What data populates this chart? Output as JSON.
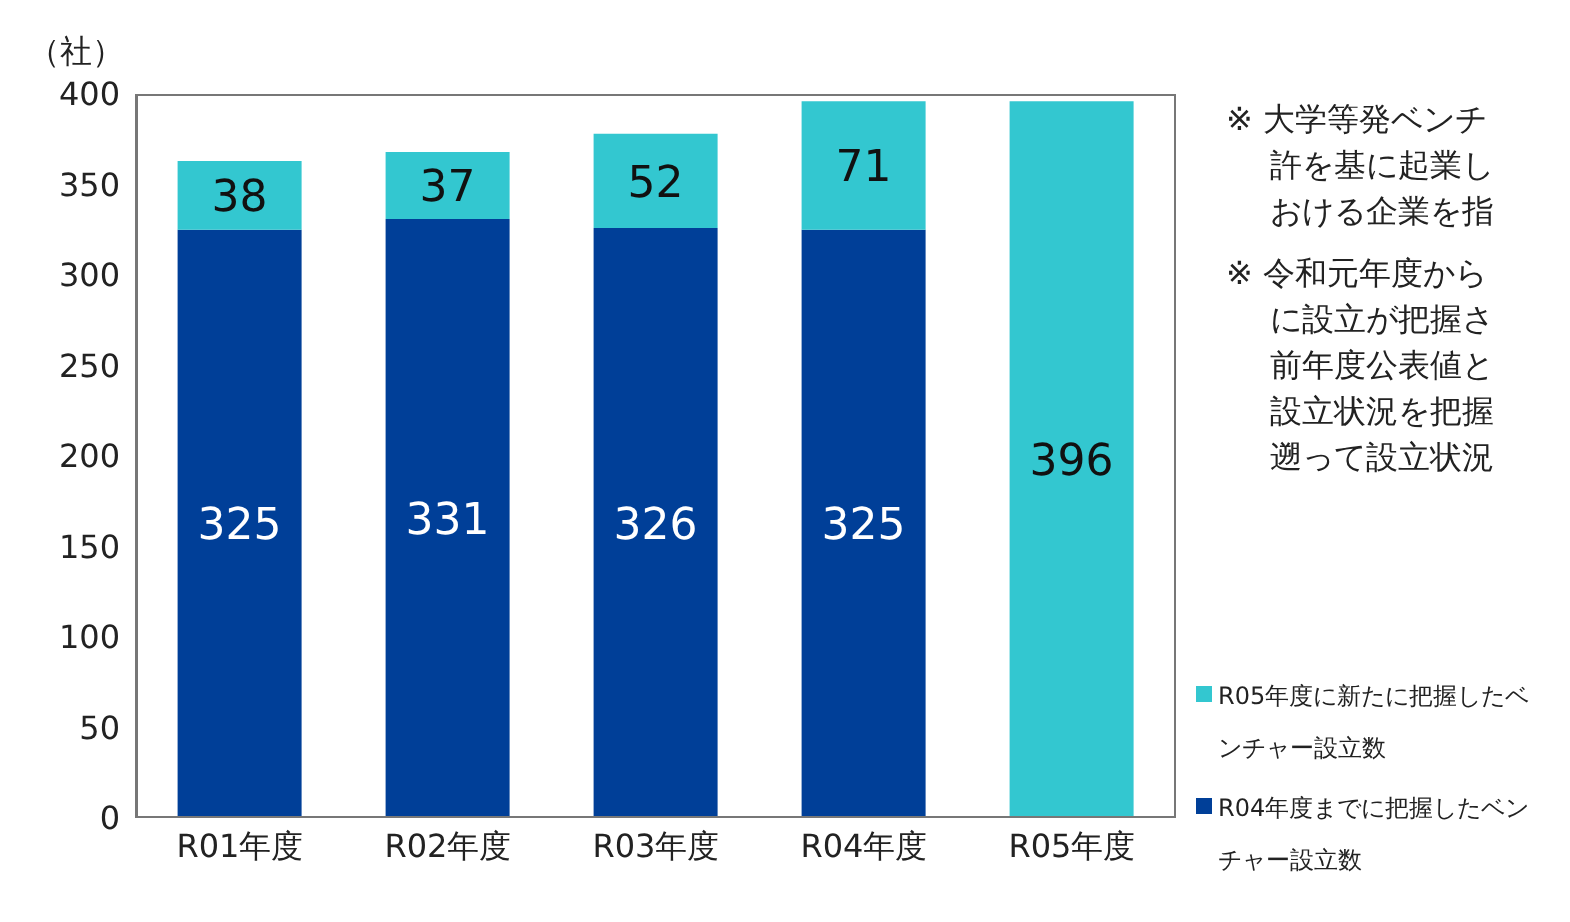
{
  "chart_data": {
    "type": "bar",
    "ylabel": "（社）",
    "categories": [
      "R01年度",
      "R02年度",
      "R03年度",
      "R04年度",
      "R05年度"
    ],
    "series": [
      {
        "name": "R04年度までに把握したベンチャー設立数",
        "color": "#003f98",
        "values": [
          325,
          331,
          326,
          325,
          null
        ]
      },
      {
        "name": "R05年度に新たに把握したベンチャー設立数",
        "color": "#33c7d0",
        "values": [
          38,
          37,
          52,
          71,
          396
        ]
      }
    ],
    "stacked": true,
    "data_labels": true,
    "ylim": [
      0,
      400
    ],
    "yticks": [
      0,
      50,
      100,
      150,
      200,
      250,
      300,
      350,
      400
    ],
    "grid": false,
    "legend": "bottom right",
    "annotations": [
      "※ 大学等発ベンチ許を基に起業しおける企業を指",
      "※ 令和元年度からに設立が把握さ前年度公表値と設立状況を把握遡って設立状況"
    ]
  }
}
